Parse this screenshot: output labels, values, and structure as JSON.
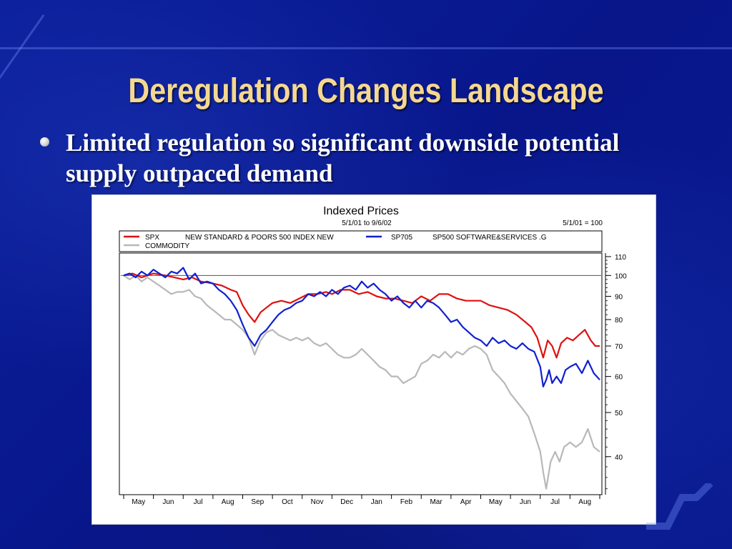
{
  "slide": {
    "title": "Deregulation Changes Landscape",
    "bullet": "Limited regulation so significant downside potential supply outpaced demand"
  },
  "colors": {
    "background": "#0a1a8c",
    "title": "#f5d890",
    "bullet_text": "#ffffff"
  },
  "chart_data": {
    "type": "line",
    "title": "Indexed Prices",
    "subtitle": "5/1/01 to 9/6/02",
    "base_note": "5/1/01 = 100",
    "xlabel": "",
    "ylabel": "",
    "y_scale": "log",
    "ylim": [
      33,
      112
    ],
    "y_ticks": [
      110,
      100,
      90,
      80,
      70,
      60,
      50,
      40
    ],
    "reference_line": 100,
    "legend_placement": "top",
    "legend": [
      {
        "code": "SPX",
        "description": "NEW STANDARD & POORS 500 INDEX NEW",
        "color": "#e01010"
      },
      {
        "code": "SP705",
        "description": "SP500 SOFTWARE&SERVICES .G",
        "color": "#1020d0"
      },
      {
        "code": "",
        "description": "COMMODITY",
        "color": "#b8b8b8"
      }
    ],
    "months": [
      "May",
      "Jun",
      "Jul",
      "Aug",
      "Sep",
      "Oct",
      "Nov",
      "Dec",
      "Jan",
      "Feb",
      "Mar",
      "Apr",
      "May",
      "Jun",
      "Jul",
      "Aug"
    ],
    "x_domain": [
      0,
      16
    ],
    "series": [
      {
        "name": "SPX",
        "color": "#e01010",
        "points": [
          [
            0,
            100
          ],
          [
            0.3,
            101
          ],
          [
            0.6,
            99
          ],
          [
            1,
            101
          ],
          [
            1.4,
            100
          ],
          [
            1.7,
            99
          ],
          [
            2,
            98
          ],
          [
            2.3,
            99
          ],
          [
            2.6,
            97
          ],
          [
            3,
            96
          ],
          [
            3.3,
            95
          ],
          [
            3.6,
            93
          ],
          [
            3.8,
            92
          ],
          [
            4,
            86
          ],
          [
            4.2,
            82
          ],
          [
            4.4,
            79
          ],
          [
            4.6,
            83
          ],
          [
            4.8,
            85
          ],
          [
            5,
            87
          ],
          [
            5.3,
            88
          ],
          [
            5.6,
            87
          ],
          [
            5.9,
            89
          ],
          [
            6.2,
            91
          ],
          [
            6.5,
            91
          ],
          [
            6.8,
            92
          ],
          [
            7,
            91
          ],
          [
            7.3,
            93
          ],
          [
            7.6,
            93
          ],
          [
            7.9,
            91
          ],
          [
            8.2,
            92
          ],
          [
            8.5,
            90
          ],
          [
            8.8,
            89
          ],
          [
            9.1,
            89
          ],
          [
            9.4,
            88
          ],
          [
            9.7,
            87
          ],
          [
            10,
            90
          ],
          [
            10.3,
            88
          ],
          [
            10.6,
            91
          ],
          [
            10.9,
            91
          ],
          [
            11.2,
            89
          ],
          [
            11.5,
            88
          ],
          [
            11.8,
            88
          ],
          [
            12,
            88
          ],
          [
            12.3,
            86
          ],
          [
            12.6,
            85
          ],
          [
            12.9,
            84
          ],
          [
            13.2,
            82
          ],
          [
            13.5,
            79
          ],
          [
            13.7,
            77
          ],
          [
            13.9,
            73
          ],
          [
            14.1,
            66
          ],
          [
            14.25,
            72
          ],
          [
            14.4,
            70
          ],
          [
            14.55,
            66
          ],
          [
            14.7,
            71
          ],
          [
            14.9,
            73
          ],
          [
            15.1,
            72
          ],
          [
            15.3,
            74
          ],
          [
            15.5,
            76
          ],
          [
            15.7,
            72
          ],
          [
            15.85,
            70
          ],
          [
            16,
            70
          ]
        ]
      },
      {
        "name": "SP705",
        "color": "#1020d0",
        "points": [
          [
            0,
            100
          ],
          [
            0.2,
            101
          ],
          [
            0.4,
            99
          ],
          [
            0.6,
            102
          ],
          [
            0.8,
            100
          ],
          [
            1,
            103
          ],
          [
            1.2,
            101
          ],
          [
            1.4,
            99
          ],
          [
            1.6,
            102
          ],
          [
            1.8,
            101
          ],
          [
            2,
            104
          ],
          [
            2.2,
            98
          ],
          [
            2.4,
            101
          ],
          [
            2.6,
            96
          ],
          [
            2.8,
            97
          ],
          [
            3,
            96
          ],
          [
            3.2,
            93
          ],
          [
            3.4,
            91
          ],
          [
            3.6,
            88
          ],
          [
            3.8,
            84
          ],
          [
            4,
            78
          ],
          [
            4.2,
            73
          ],
          [
            4.4,
            70
          ],
          [
            4.6,
            74
          ],
          [
            4.8,
            76
          ],
          [
            5,
            79
          ],
          [
            5.2,
            82
          ],
          [
            5.4,
            84
          ],
          [
            5.6,
            85
          ],
          [
            5.8,
            87
          ],
          [
            6,
            88
          ],
          [
            6.2,
            91
          ],
          [
            6.4,
            90
          ],
          [
            6.6,
            92
          ],
          [
            6.8,
            90
          ],
          [
            7,
            93
          ],
          [
            7.2,
            91
          ],
          [
            7.4,
            94
          ],
          [
            7.6,
            95
          ],
          [
            7.8,
            93
          ],
          [
            8,
            97
          ],
          [
            8.2,
            94
          ],
          [
            8.4,
            96
          ],
          [
            8.6,
            93
          ],
          [
            8.8,
            91
          ],
          [
            9,
            88
          ],
          [
            9.2,
            90
          ],
          [
            9.4,
            87
          ],
          [
            9.6,
            85
          ],
          [
            9.8,
            88
          ],
          [
            10,
            85
          ],
          [
            10.2,
            88
          ],
          [
            10.4,
            87
          ],
          [
            10.6,
            85
          ],
          [
            10.8,
            82
          ],
          [
            11,
            79
          ],
          [
            11.2,
            80
          ],
          [
            11.4,
            77
          ],
          [
            11.6,
            75
          ],
          [
            11.8,
            73
          ],
          [
            12,
            72
          ],
          [
            12.2,
            70
          ],
          [
            12.4,
            73
          ],
          [
            12.6,
            71
          ],
          [
            12.8,
            72
          ],
          [
            13,
            70
          ],
          [
            13.2,
            69
          ],
          [
            13.4,
            71
          ],
          [
            13.6,
            69
          ],
          [
            13.8,
            68
          ],
          [
            14,
            63
          ],
          [
            14.1,
            57
          ],
          [
            14.2,
            59
          ],
          [
            14.3,
            62
          ],
          [
            14.4,
            58
          ],
          [
            14.55,
            60
          ],
          [
            14.7,
            58
          ],
          [
            14.85,
            62
          ],
          [
            15,
            63
          ],
          [
            15.2,
            64
          ],
          [
            15.4,
            61
          ],
          [
            15.6,
            65
          ],
          [
            15.8,
            61
          ],
          [
            16,
            59
          ]
        ]
      },
      {
        "name": "COMMODITY",
        "color": "#b8b8b8",
        "points": [
          [
            0,
            100
          ],
          [
            0.2,
            98
          ],
          [
            0.4,
            100
          ],
          [
            0.6,
            97
          ],
          [
            0.8,
            99
          ],
          [
            1,
            97
          ],
          [
            1.2,
            95
          ],
          [
            1.4,
            93
          ],
          [
            1.6,
            91
          ],
          [
            1.8,
            92
          ],
          [
            2,
            92
          ],
          [
            2.2,
            93
          ],
          [
            2.4,
            90
          ],
          [
            2.6,
            89
          ],
          [
            2.8,
            86
          ],
          [
            3,
            84
          ],
          [
            3.2,
            82
          ],
          [
            3.4,
            80
          ],
          [
            3.6,
            80
          ],
          [
            3.8,
            78
          ],
          [
            4,
            76
          ],
          [
            4.2,
            73
          ],
          [
            4.4,
            67
          ],
          [
            4.6,
            72
          ],
          [
            4.8,
            75
          ],
          [
            5,
            76
          ],
          [
            5.2,
            74
          ],
          [
            5.4,
            73
          ],
          [
            5.6,
            72
          ],
          [
            5.8,
            73
          ],
          [
            6,
            72
          ],
          [
            6.2,
            73
          ],
          [
            6.4,
            71
          ],
          [
            6.6,
            70
          ],
          [
            6.8,
            71
          ],
          [
            7,
            69
          ],
          [
            7.2,
            67
          ],
          [
            7.4,
            66
          ],
          [
            7.6,
            66
          ],
          [
            7.8,
            67
          ],
          [
            8,
            69
          ],
          [
            8.2,
            67
          ],
          [
            8.4,
            65
          ],
          [
            8.6,
            63
          ],
          [
            8.8,
            62
          ],
          [
            9,
            60
          ],
          [
            9.2,
            60
          ],
          [
            9.4,
            58
          ],
          [
            9.6,
            59
          ],
          [
            9.8,
            60
          ],
          [
            10,
            64
          ],
          [
            10.2,
            65
          ],
          [
            10.4,
            67
          ],
          [
            10.6,
            66
          ],
          [
            10.8,
            68
          ],
          [
            11,
            66
          ],
          [
            11.2,
            68
          ],
          [
            11.4,
            67
          ],
          [
            11.6,
            69
          ],
          [
            11.8,
            70
          ],
          [
            12,
            69
          ],
          [
            12.2,
            67
          ],
          [
            12.4,
            62
          ],
          [
            12.6,
            60
          ],
          [
            12.8,
            58
          ],
          [
            13,
            55
          ],
          [
            13.2,
            53
          ],
          [
            13.4,
            51
          ],
          [
            13.6,
            49
          ],
          [
            13.8,
            45
          ],
          [
            14,
            41
          ],
          [
            14.1,
            37
          ],
          [
            14.2,
            34
          ],
          [
            14.35,
            39
          ],
          [
            14.5,
            41
          ],
          [
            14.65,
            39
          ],
          [
            14.8,
            42
          ],
          [
            15,
            43
          ],
          [
            15.2,
            42
          ],
          [
            15.4,
            43
          ],
          [
            15.6,
            46
          ],
          [
            15.8,
            42
          ],
          [
            16,
            41
          ]
        ]
      }
    ]
  }
}
